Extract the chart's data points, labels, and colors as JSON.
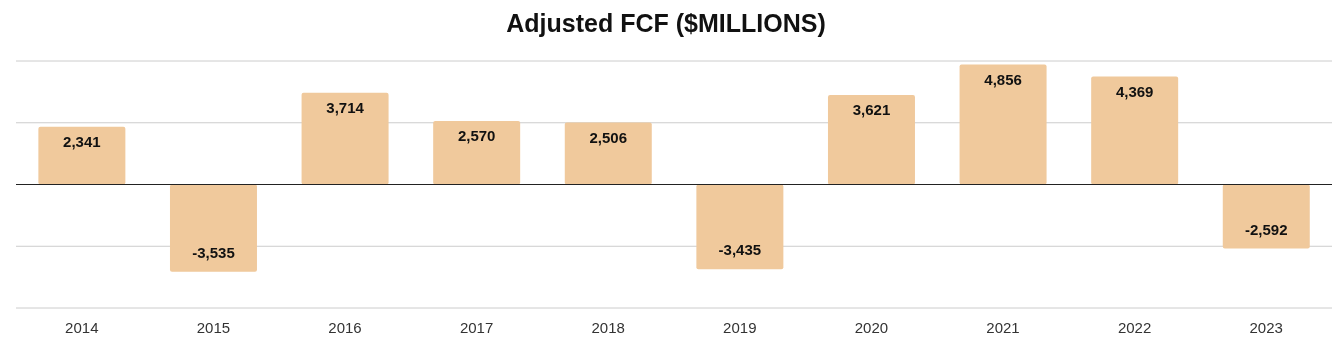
{
  "chart_data": {
    "type": "bar",
    "title": "Adjusted FCF ($MILLIONS)",
    "categories": [
      "2014",
      "2015",
      "2016",
      "2017",
      "2018",
      "2019",
      "2020",
      "2021",
      "2022",
      "2023"
    ],
    "values": [
      2341,
      -3535,
      3714,
      2570,
      2506,
      -3435,
      3621,
      4856,
      4369,
      -2592
    ],
    "value_labels": [
      "2,341",
      "-3,535",
      "3,714",
      "2,570",
      "2,506",
      "-3,435",
      "3,621",
      "4,856",
      "4,369",
      "-2,592"
    ],
    "color": "#f0c99c",
    "ylim": [
      -5000,
      5000
    ],
    "yticks": [
      {
        "value": -5000,
        "label": null
      },
      {
        "value": -2500,
        "label": null
      },
      {
        "value": 0,
        "label": null
      },
      {
        "value": 2500,
        "label": null
      },
      {
        "value": 5000,
        "label": null
      }
    ],
    "tick_labels": "x",
    "grid": "y"
  }
}
